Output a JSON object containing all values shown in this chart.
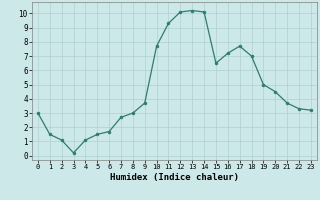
{
  "x": [
    0,
    1,
    2,
    3,
    4,
    5,
    6,
    7,
    8,
    9,
    10,
    11,
    12,
    13,
    14,
    15,
    16,
    17,
    18,
    19,
    20,
    21,
    22,
    23
  ],
  "y": [
    3.0,
    1.5,
    1.1,
    0.2,
    1.1,
    1.5,
    1.7,
    2.7,
    3.0,
    3.7,
    7.7,
    9.3,
    10.1,
    10.2,
    10.1,
    6.5,
    7.2,
    7.7,
    7.0,
    5.0,
    4.5,
    3.7,
    3.3,
    3.2
  ],
  "xlabel": "Humidex (Indice chaleur)",
  "xlim": [
    -0.5,
    23.5
  ],
  "ylim": [
    -0.3,
    10.8
  ],
  "yticks": [
    0,
    1,
    2,
    3,
    4,
    5,
    6,
    7,
    8,
    9,
    10
  ],
  "xticks": [
    0,
    1,
    2,
    3,
    4,
    5,
    6,
    7,
    8,
    9,
    10,
    11,
    12,
    13,
    14,
    15,
    16,
    17,
    18,
    19,
    20,
    21,
    22,
    23
  ],
  "line_color": "#2e7d6e",
  "marker_color": "#2e7d6e",
  "bg_color": "#cce8e8",
  "grid_color": "#b0d0d0"
}
